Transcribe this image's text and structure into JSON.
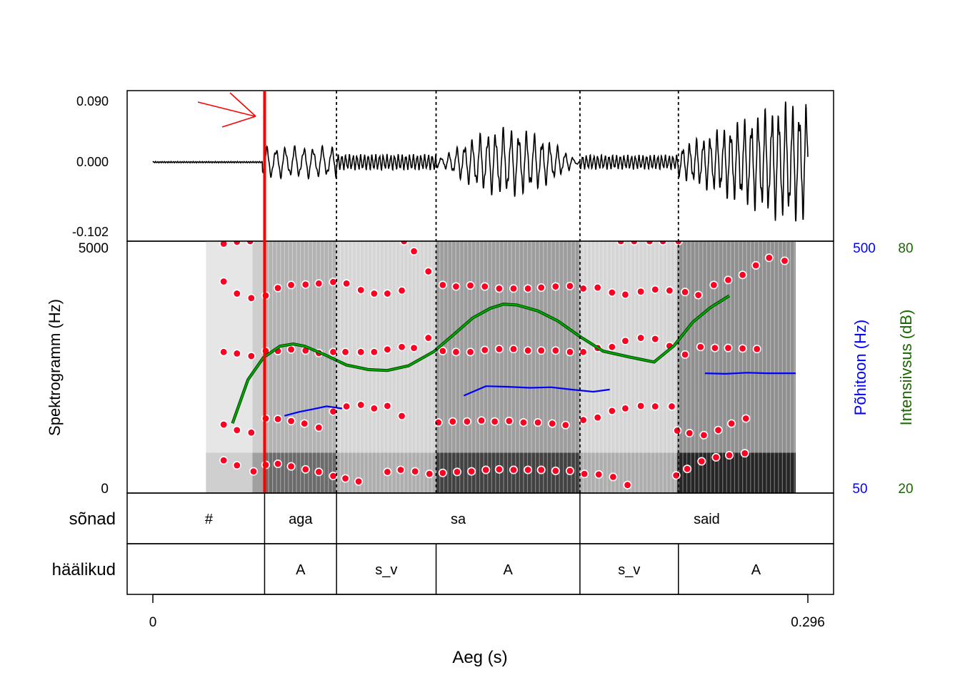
{
  "chart_data": {
    "type": "line",
    "x_axis": {
      "label": "Aeg (s)",
      "range": [
        0,
        0.296
      ],
      "ticks": [
        "0",
        "0.296"
      ]
    },
    "waveform": {
      "ylim": [
        -0.102,
        0.09
      ],
      "y_ticks": [
        "0.090",
        "0.000",
        "-0.102"
      ],
      "onset_marker_time": 0.0505,
      "segments": [
        {
          "from": 0.0,
          "to": 0.0495,
          "amplitude": 0.001,
          "period": 0.001
        },
        {
          "from": 0.0495,
          "to": 0.083,
          "amplitude": 0.024,
          "period": 0.0042
        },
        {
          "from": 0.083,
          "to": 0.128,
          "amplitude": 0.012,
          "period": 0.0017
        },
        {
          "from": 0.128,
          "to": 0.193,
          "amplitude": 0.052,
          "period": 0.0035
        },
        {
          "from": 0.193,
          "to": 0.237,
          "amplitude": 0.011,
          "period": 0.0017
        },
        {
          "from": 0.237,
          "to": 0.296,
          "amplitude": 0.09,
          "period": 0.0031
        }
      ]
    },
    "spectrogram": {
      "ylabel": "Spektrogramm (Hz)",
      "ylim": [
        0,
        5000
      ],
      "y_ticks": [
        "5000",
        "0"
      ],
      "intensity_bands": [
        {
          "from": 0.024,
          "to": 0.045,
          "level": 0.18
        },
        {
          "from": 0.045,
          "to": 0.0505,
          "level": 0.35
        },
        {
          "from": 0.0505,
          "to": 0.083,
          "level": 0.55
        },
        {
          "from": 0.083,
          "to": 0.128,
          "level": 0.3
        },
        {
          "from": 0.128,
          "to": 0.193,
          "level": 0.7
        },
        {
          "from": 0.193,
          "to": 0.237,
          "level": 0.3
        },
        {
          "from": 0.237,
          "to": 0.2905,
          "level": 0.8
        }
      ],
      "formants": [
        [
          [
            0.032,
            650
          ],
          [
            0.038,
            550
          ],
          [
            0.0455,
            430
          ],
          [
            0.051,
            560
          ],
          [
            0.0565,
            580
          ],
          [
            0.0625,
            530
          ],
          [
            0.069,
            470
          ],
          [
            0.075,
            420
          ],
          [
            0.0815,
            340
          ],
          [
            0.087,
            290
          ],
          [
            0.093,
            230
          ],
          [
            0.106,
            420
          ],
          [
            0.112,
            460
          ],
          [
            0.1185,
            430
          ],
          [
            0.125,
            380
          ],
          [
            0.131,
            400
          ],
          [
            0.1375,
            420
          ],
          [
            0.144,
            430
          ],
          [
            0.1505,
            460
          ],
          [
            0.1565,
            470
          ],
          [
            0.163,
            460
          ],
          [
            0.1695,
            460
          ],
          [
            0.1755,
            460
          ],
          [
            0.182,
            440
          ],
          [
            0.1885,
            440
          ],
          [
            0.195,
            380
          ],
          [
            0.2015,
            370
          ],
          [
            0.208,
            320
          ],
          [
            0.2145,
            160
          ],
          [
            0.2365,
            350
          ],
          [
            0.2415,
            480
          ],
          [
            0.248,
            630
          ],
          [
            0.2545,
            710
          ],
          [
            0.2605,
            750
          ],
          [
            0.2675,
            790
          ]
        ],
        [
          [
            0.032,
            1360
          ],
          [
            0.038,
            1250
          ],
          [
            0.0445,
            1200
          ],
          [
            0.051,
            1480
          ],
          [
            0.0565,
            1470
          ],
          [
            0.0625,
            1430
          ],
          [
            0.0685,
            1380
          ],
          [
            0.075,
            1300
          ],
          [
            0.0815,
            1620
          ],
          [
            0.0875,
            1720
          ],
          [
            0.094,
            1750
          ],
          [
            0.1,
            1680
          ],
          [
            0.106,
            1730
          ],
          [
            0.1125,
            1530
          ],
          [
            0.129,
            1400
          ],
          [
            0.1355,
            1420
          ],
          [
            0.142,
            1420
          ],
          [
            0.1485,
            1440
          ],
          [
            0.1545,
            1420
          ],
          [
            0.161,
            1430
          ],
          [
            0.1675,
            1400
          ],
          [
            0.174,
            1400
          ],
          [
            0.1805,
            1380
          ],
          [
            0.1865,
            1350
          ],
          [
            0.1945,
            1450
          ],
          [
            0.201,
            1500
          ],
          [
            0.2075,
            1630
          ],
          [
            0.2135,
            1680
          ],
          [
            0.2205,
            1730
          ],
          [
            0.227,
            1720
          ],
          [
            0.2345,
            1720
          ],
          [
            0.237,
            1240
          ],
          [
            0.2425,
            1190
          ],
          [
            0.249,
            1150
          ],
          [
            0.2555,
            1250
          ],
          [
            0.2615,
            1380
          ],
          [
            0.268,
            1480
          ]
        ],
        [
          [
            0.032,
            2800
          ],
          [
            0.038,
            2770
          ],
          [
            0.0445,
            2720
          ],
          [
            0.051,
            2820
          ],
          [
            0.0565,
            2820
          ],
          [
            0.0625,
            2850
          ],
          [
            0.069,
            2830
          ],
          [
            0.075,
            2780
          ],
          [
            0.0815,
            2800
          ],
          [
            0.087,
            2800
          ],
          [
            0.094,
            2800
          ],
          [
            0.1,
            2800
          ],
          [
            0.106,
            2850
          ],
          [
            0.1125,
            2900
          ],
          [
            0.118,
            2880
          ],
          [
            0.1245,
            3080
          ],
          [
            0.131,
            2820
          ],
          [
            0.137,
            2800
          ],
          [
            0.1435,
            2800
          ],
          [
            0.15,
            2840
          ],
          [
            0.1565,
            2860
          ],
          [
            0.163,
            2860
          ],
          [
            0.1695,
            2830
          ],
          [
            0.1755,
            2830
          ],
          [
            0.182,
            2830
          ],
          [
            0.1885,
            2800
          ],
          [
            0.1945,
            2800
          ],
          [
            0.201,
            2880
          ],
          [
            0.2075,
            2900
          ],
          [
            0.2135,
            3020
          ],
          [
            0.2205,
            3080
          ],
          [
            0.227,
            3060
          ],
          [
            0.2335,
            2920
          ],
          [
            0.2405,
            2750
          ],
          [
            0.2475,
            2900
          ],
          [
            0.254,
            2880
          ],
          [
            0.26,
            2880
          ],
          [
            0.2665,
            2870
          ],
          [
            0.273,
            2860
          ]
        ],
        [
          [
            0.032,
            4200
          ],
          [
            0.038,
            3960
          ],
          [
            0.0445,
            3870
          ],
          [
            0.051,
            3920
          ],
          [
            0.0565,
            4070
          ],
          [
            0.0625,
            4130
          ],
          [
            0.069,
            4140
          ],
          [
            0.075,
            4160
          ],
          [
            0.0815,
            4190
          ],
          [
            0.0875,
            4160
          ],
          [
            0.094,
            4030
          ],
          [
            0.1,
            3960
          ],
          [
            0.106,
            3960
          ],
          [
            0.1125,
            4020
          ],
          [
            0.118,
            4800
          ],
          [
            0.1245,
            4400
          ],
          [
            0.131,
            4130
          ],
          [
            0.137,
            4100
          ],
          [
            0.1435,
            4120
          ],
          [
            0.15,
            4100
          ],
          [
            0.1565,
            4060
          ],
          [
            0.163,
            4060
          ],
          [
            0.1695,
            4060
          ],
          [
            0.1755,
            4080
          ],
          [
            0.182,
            4100
          ],
          [
            0.1885,
            4110
          ],
          [
            0.1945,
            4060
          ],
          [
            0.201,
            4080
          ],
          [
            0.2075,
            3980
          ],
          [
            0.2135,
            3940
          ],
          [
            0.2205,
            4000
          ],
          [
            0.227,
            4040
          ],
          [
            0.2335,
            4020
          ],
          [
            0.2405,
            3990
          ],
          [
            0.2465,
            3930
          ],
          [
            0.2535,
            4130
          ],
          [
            0.26,
            4230
          ],
          [
            0.2665,
            4330
          ],
          [
            0.2725,
            4520
          ],
          [
            0.2785,
            4670
          ],
          [
            0.2855,
            4610
          ]
        ],
        [
          [
            0.032,
            4950
          ],
          [
            0.038,
            4990
          ],
          [
            0.044,
            5000
          ],
          [
            0.1135,
            5000
          ],
          [
            0.2115,
            5000
          ],
          [
            0.2175,
            5000
          ],
          [
            0.2245,
            5000
          ],
          [
            0.2305,
            5000
          ],
          [
            0.2375,
            5000
          ]
        ]
      ]
    },
    "series": [
      {
        "name": "Põhitoon (Hz)",
        "color": "#0000ff",
        "axis_ticks": [
          "500",
          "50"
        ],
        "ylim": [
          50,
          500
        ],
        "segments": [
          [
            [
              0.0595,
              188
            ],
            [
              0.066,
              195
            ],
            [
              0.0725,
              200
            ],
            [
              0.0785,
              205
            ],
            [
              0.0855,
              201
            ]
          ],
          [
            [
              0.1405,
              224
            ],
            [
              0.1505,
              241
            ],
            [
              0.16,
              240
            ],
            [
              0.1705,
              238
            ],
            [
              0.18,
              239
            ],
            [
              0.189,
              235
            ],
            [
              0.199,
              231
            ],
            [
              0.2065,
              235
            ]
          ],
          [
            [
              0.2495,
              264
            ],
            [
              0.2585,
              263
            ],
            [
              0.2685,
              265
            ],
            [
              0.2775,
              264
            ],
            [
              0.2905,
              264
            ]
          ]
        ]
      },
      {
        "name": "Intensiivsus (dB)",
        "color": "#00aa00",
        "axis_ticks": [
          "80",
          "20"
        ],
        "ylim": [
          20,
          80
        ],
        "points": [
          [
            0.036,
            36.6
          ],
          [
            0.043,
            47
          ],
          [
            0.05,
            52.3
          ],
          [
            0.0575,
            55
          ],
          [
            0.0635,
            55.5
          ],
          [
            0.0685,
            55
          ],
          [
            0.0775,
            53
          ],
          [
            0.0875,
            50.5
          ],
          [
            0.0975,
            49.4
          ],
          [
            0.106,
            49.2
          ],
          [
            0.1155,
            50.3
          ],
          [
            0.127,
            53.7
          ],
          [
            0.1365,
            58
          ],
          [
            0.1445,
            61.7
          ],
          [
            0.1525,
            64
          ],
          [
            0.1585,
            65
          ],
          [
            0.1645,
            64.8
          ],
          [
            0.174,
            63.4
          ],
          [
            0.183,
            61
          ],
          [
            0.193,
            57.3
          ],
          [
            0.2035,
            53.8
          ],
          [
            0.2155,
            52.4
          ],
          [
            0.2265,
            51.2
          ],
          [
            0.2355,
            55.1
          ],
          [
            0.244,
            60.7
          ],
          [
            0.252,
            64.2
          ],
          [
            0.2605,
            67
          ]
        ]
      }
    ],
    "tiers": [
      {
        "name": "sõnad",
        "intervals": [
          {
            "label": "#",
            "start": 0.0,
            "end": 0.0505
          },
          {
            "label": "aga",
            "start": 0.0505,
            "end": 0.083
          },
          {
            "label": "sa",
            "start": 0.083,
            "end": 0.193
          },
          {
            "label": "said",
            "start": 0.193,
            "end": 0.296
          }
        ]
      },
      {
        "name": "häälikud",
        "intervals": [
          {
            "label": "",
            "start": 0.0,
            "end": 0.0505
          },
          {
            "label": "A",
            "start": 0.0505,
            "end": 0.083
          },
          {
            "label": "s_v",
            "start": 0.083,
            "end": 0.128
          },
          {
            "label": "A",
            "start": 0.128,
            "end": 0.193
          },
          {
            "label": "s_v",
            "start": 0.193,
            "end": 0.2375
          },
          {
            "label": "A",
            "start": 0.2375,
            "end": 0.296
          }
        ]
      }
    ],
    "boundaries": [
      0.083,
      0.128,
      0.193,
      0.2375
    ]
  },
  "colors": {
    "marker": "#ff0000",
    "formant_dot": "#ff0022",
    "f0_label": "#0000ff",
    "intensity_label": "#1a6600",
    "axis": "#000000"
  }
}
